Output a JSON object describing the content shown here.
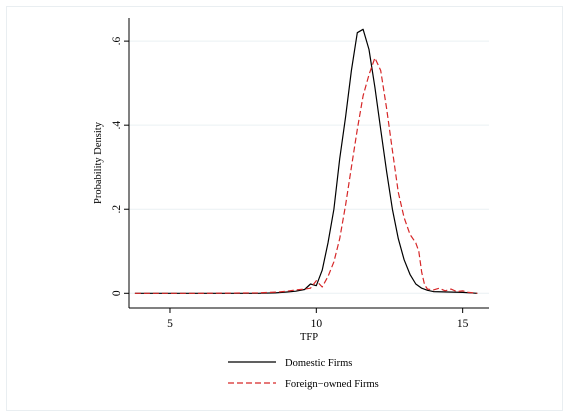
{
  "chart_data": {
    "type": "line",
    "ylabel": "Probability Density",
    "xlabel": "TFP",
    "xlim": [
      3.6,
      15.9
    ],
    "ylim": [
      -0.035,
      0.655
    ],
    "xticks": [
      {
        "value": 5,
        "label": "5"
      },
      {
        "value": 10,
        "label": "10"
      },
      {
        "value": 15,
        "label": "15"
      }
    ],
    "yticks": [
      {
        "value": 0,
        "label": "0"
      },
      {
        "value": 0.2,
        "label": ".2"
      },
      {
        "value": 0.4,
        "label": ".4"
      },
      {
        "value": 0.6,
        "label": ".6"
      }
    ],
    "grid": true,
    "legend_position": "bottom",
    "series": [
      {
        "name": "Domestic Firms",
        "color": "#000000",
        "dash": "solid",
        "x": [
          3.8,
          5,
          6,
          7,
          8,
          8.6,
          9,
          9.3,
          9.6,
          9.8,
          10.0,
          10.2,
          10.4,
          10.6,
          10.8,
          11.0,
          11.2,
          11.4,
          11.6,
          11.8,
          12.0,
          12.2,
          12.4,
          12.6,
          12.8,
          13.0,
          13.2,
          13.4,
          13.6,
          13.8,
          14.0,
          14.5,
          15.0,
          15.5
        ],
        "y": [
          0.0,
          0.0,
          0.0,
          0.0,
          0.0,
          0.001,
          0.003,
          0.005,
          0.009,
          0.022,
          0.018,
          0.055,
          0.12,
          0.2,
          0.32,
          0.42,
          0.53,
          0.62,
          0.628,
          0.58,
          0.49,
          0.39,
          0.29,
          0.2,
          0.13,
          0.08,
          0.045,
          0.022,
          0.012,
          0.007,
          0.004,
          0.003,
          0.002,
          0.0
        ]
      },
      {
        "name": "Foreign−owned Firms",
        "color": "#d62728",
        "dash": "dashed",
        "x": [
          3.8,
          6,
          8,
          8.7,
          9.0,
          9.3,
          9.6,
          9.8,
          10.0,
          10.2,
          10.4,
          10.6,
          10.8,
          11.0,
          11.2,
          11.4,
          11.6,
          11.8,
          12.0,
          12.2,
          12.4,
          12.6,
          12.8,
          13.0,
          13.2,
          13.4,
          13.5,
          13.6,
          13.7,
          13.8,
          14.0,
          14.2,
          14.4,
          14.6,
          14.8,
          15.0,
          15.2,
          15.5
        ],
        "y": [
          0.0,
          0.0,
          0.001,
          0.003,
          0.005,
          0.008,
          0.01,
          0.012,
          0.03,
          0.015,
          0.04,
          0.075,
          0.13,
          0.21,
          0.3,
          0.39,
          0.47,
          0.52,
          0.56,
          0.53,
          0.44,
          0.34,
          0.24,
          0.18,
          0.14,
          0.12,
          0.1,
          0.05,
          0.02,
          0.01,
          0.008,
          0.012,
          0.006,
          0.01,
          0.004,
          0.006,
          0.002,
          0.0
        ]
      }
    ]
  }
}
